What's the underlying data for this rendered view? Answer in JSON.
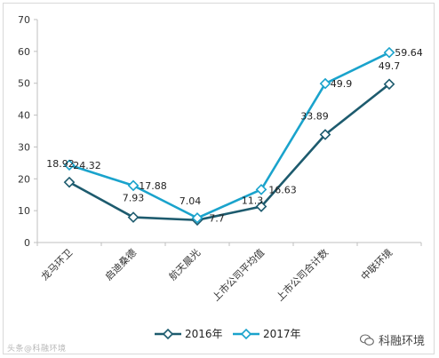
{
  "chart_data": {
    "type": "line",
    "categories": [
      "龙马环卫",
      "启迪桑德",
      "航天晨光",
      "上市公司平均值",
      "上市公司合计数",
      "中联环境"
    ],
    "ylim": [
      0,
      70
    ],
    "yticks": [
      0,
      10,
      20,
      30,
      40,
      50,
      60,
      70
    ],
    "grid": false,
    "legend_position": "bottom",
    "series": [
      {
        "name": "2016年",
        "color": "#1d5b6e",
        "values": [
          18.92,
          7.93,
          7.04,
          11.3,
          33.89,
          49.7
        ],
        "labels": [
          "18.92",
          "7.93",
          "7.04",
          "11.3",
          "33.89",
          "49.7"
        ]
      },
      {
        "name": "2017年",
        "color": "#1aa3cc",
        "values": [
          24.32,
          17.88,
          7.7,
          16.63,
          49.9,
          59.64
        ],
        "labels": [
          "24.32",
          "17.88",
          "7.7",
          "16.63",
          "49.9",
          "59.64"
        ]
      }
    ]
  },
  "watermark_left": "头条@科融环境",
  "watermark_right": "科融环境"
}
